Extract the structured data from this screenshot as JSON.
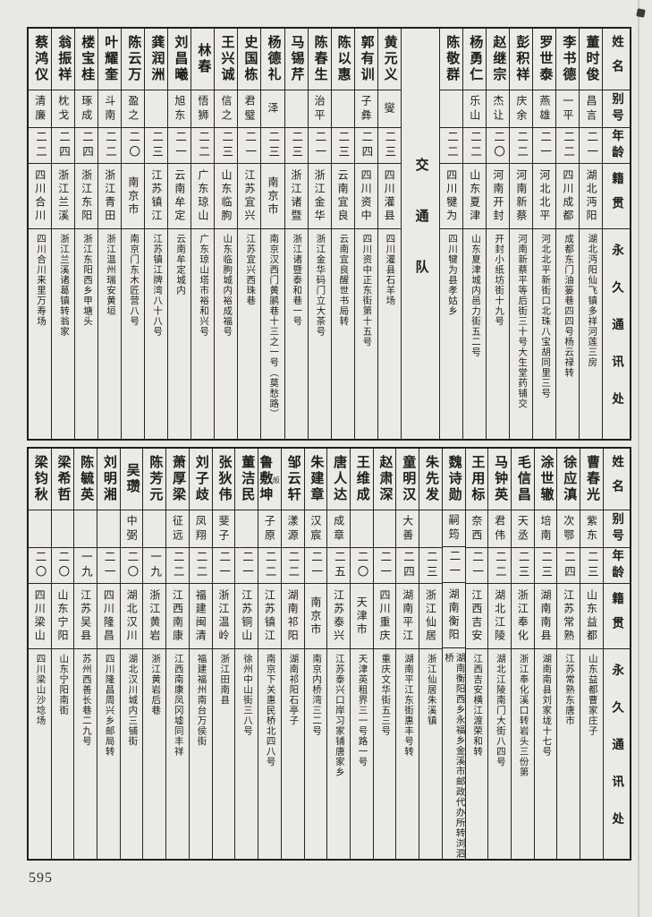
{
  "page": {
    "number": "595"
  },
  "headers": {
    "name": "姓名",
    "alias": "别号",
    "age": "年龄",
    "origin": "籍贯",
    "address": "永久通讯处"
  },
  "tables": [
    {
      "id": "top",
      "divider": {
        "label": "交通队",
        "before_index": 7
      },
      "entries": [
        {
          "name": "董时俊",
          "alias": "昌言",
          "age": "二一",
          "origin": "湖北沔阳",
          "address": "湖北沔阳仙飞镇多祥河莲三房"
        },
        {
          "name": "李书德",
          "alias": "一平",
          "age": "二二",
          "origin": "四川成都",
          "address": "成都东门油篓巷四四号杨云禄转"
        },
        {
          "name": "罗世泰",
          "alias": "燕雄",
          "age": "二一",
          "origin": "河北北平",
          "address": "河北北平新街口北珠八宝胡同里三号"
        },
        {
          "name": "彭积祥",
          "alias": "庆余",
          "age": "二二",
          "origin": "河南新蔡",
          "address": "河南新蔡平等后街三十号大生堂药铺交"
        },
        {
          "name": "赵继宗",
          "alias": "杰让",
          "age": "二〇",
          "origin": "河南开封",
          "address": "开封小纸坊街十九号"
        },
        {
          "name": "杨勇仁",
          "alias": "乐山",
          "age": "二二",
          "origin": "山东夏津",
          "address": "山东夏津城内邑力街五二号"
        },
        {
          "name": "陈敬群",
          "alias": "",
          "age": "二二",
          "origin": "四川犍为",
          "address": "四川犍为县孝姑乡"
        },
        {
          "name": "黄元义",
          "alias": "燮",
          "age": "二三",
          "origin": "四川灌县",
          "address": "四川灌县石羊场"
        },
        {
          "name": "郭有训",
          "alias": "子彝",
          "age": "二四",
          "origin": "四川资中",
          "address": "四川资中正东街第十五号"
        },
        {
          "name": "陈以惠",
          "alias": "",
          "age": "二三",
          "origin": "云南宜良",
          "address": "云南宜良醒世书局转"
        },
        {
          "name": "陈春生",
          "alias": "治平",
          "age": "二一",
          "origin": "浙江金华",
          "address": "浙江金华码门立大茶号"
        },
        {
          "name": "马锡芹",
          "alias": "",
          "age": "二三",
          "origin": "浙江诸暨",
          "address": "浙江诸暨泰和巷一号"
        },
        {
          "name": "杨德礼",
          "alias": "泽",
          "age": "二三",
          "origin": "南京市",
          "address": "南京汉西门黄鹂巷十三之一号（莫愁路）"
        },
        {
          "name": "史国栋",
          "alias": "君璧",
          "age": "二一",
          "origin": "江苏宜兴",
          "address": "江苏宜兴西珠巷"
        },
        {
          "name": "王兴诚",
          "alias": "信之",
          "age": "二三",
          "origin": "山东临朐",
          "address": "山东临朐城内裕成福号"
        },
        {
          "name": "林春",
          "alias": "悟狮",
          "age": "二二",
          "origin": "广东琼山",
          "address": "广东琼山塔市裕和兴号"
        },
        {
          "name": "刘昌曦",
          "alias": "旭东",
          "age": "二一",
          "origin": "云南牟定",
          "address": "云南牟定城内"
        },
        {
          "name": "龚润洲",
          "alias": "",
          "age": "二三",
          "origin": "江苏镇江",
          "address": "江苏镇江牌湾八十八号"
        },
        {
          "name": "陈云万",
          "alias": "盈之",
          "age": "二〇",
          "origin": "南京市",
          "address": "南京门东木匠营八号"
        },
        {
          "name": "叶耀奎",
          "alias": "斗南",
          "age": "二二",
          "origin": "浙江青田",
          "address": "浙江温州瑞安黄垣"
        },
        {
          "name": "楼宝桂",
          "alias": "琢成",
          "age": "二四",
          "origin": "浙江东阳",
          "address": "浙江东阳西乡甲塘头"
        },
        {
          "name": "翁振祥",
          "alias": "枕戈",
          "age": "二四",
          "origin": "浙江兰溪",
          "address": "浙江兰溪诸葛镇转翁家"
        },
        {
          "name": "蔡鸿仪",
          "alias": "清廉",
          "age": "二二",
          "origin": "四川合川",
          "address": "四川合川来里万寿场"
        }
      ]
    },
    {
      "id": "bottom",
      "entries": [
        {
          "name": "曹春光",
          "alias": "紫东",
          "age": "二三",
          "origin": "山东益都",
          "address": "山东益都曹家庄子"
        },
        {
          "name": "徐应滇",
          "alias": "次鄂",
          "age": "二四",
          "origin": "江苏常熟",
          "address": "江苏常熟东唐市"
        },
        {
          "name": "涂世辙",
          "alias": "培南",
          "age": "二三",
          "origin": "湖南南县",
          "address": "湖南南县刘家垅十七号"
        },
        {
          "name": "毛信昌",
          "alias": "天丞",
          "age": "二三",
          "origin": "浙江奉化",
          "address": "浙江奉化溪口转岩头三份第"
        },
        {
          "name": "马钟英",
          "alias": "君伟",
          "age": "二二",
          "origin": "湖北江陵",
          "address": "湖北江陵南门大街八四号"
        },
        {
          "name": "王用标",
          "alias": "奈西",
          "age": "二一",
          "origin": "江西吉安",
          "address": "江西吉安横江渡荣和转"
        },
        {
          "name": "魏诗勋",
          "alias": "嗣筠",
          "age": "二一",
          "origin": "湖南衡阳",
          "address": "湖南衡阳西乡永福乡金溪市邮政代办所转浏泗桥"
        },
        {
          "name": "朱先发",
          "alias": "",
          "age": "二三",
          "origin": "浙江仙居",
          "address": "浙江仙居朱溪镇"
        },
        {
          "name": "童明汉",
          "alias": "大善",
          "age": "二四",
          "origin": "湖南平江",
          "address": "湖南平江东街惠丰号转"
        },
        {
          "name": "赵肃深",
          "alias": "",
          "age": "二一",
          "origin": "四川重庆",
          "address": "重庆文华街五三号"
        },
        {
          "name": "王维成",
          "alias": "",
          "age": "二〇",
          "origin": "天津市",
          "address": "天津英租界三一号路一号"
        },
        {
          "name": "唐人达",
          "alias": "成章",
          "age": "二五",
          "origin": "江苏泰兴",
          "address": "江苏泰兴口岸习家铺唐家乡"
        },
        {
          "name": "朱建章",
          "alias": "汉宸",
          "age": "二一",
          "origin": "南京市",
          "address": "南京内桥湾三二号"
        },
        {
          "name": "邹云轩",
          "alias": "漾源",
          "age": "二二",
          "origin": "湖南祁阳",
          "address": "湖南祁阳石亭子"
        },
        {
          "name": "鲁敷坤",
          "name_note": "皈",
          "alias": "子原",
          "age": "二二",
          "origin": "江苏镇江",
          "address": "南京下关惠民桥北四八号"
        },
        {
          "name": "董洁民",
          "alias": "",
          "age": "二一",
          "origin": "江苏铜山",
          "address": "徐州中山街三八号"
        },
        {
          "name": "张狄伟",
          "alias": "斐子",
          "age": "二一",
          "origin": "浙江温岭",
          "address": "浙江田南县"
        },
        {
          "name": "刘子歧",
          "alias": "凤翔",
          "age": "二二",
          "origin": "福建闽清",
          "address": "福建福州南台万侯街"
        },
        {
          "name": "萧厚梁",
          "alias": "征远",
          "age": "二二",
          "origin": "江西南康",
          "address": "江西南康凤冈墟同丰祥"
        },
        {
          "name": "陈芳元",
          "alias": "",
          "age": "一九",
          "origin": "浙江黄岩",
          "address": "浙江黄岩后巷"
        },
        {
          "name": "吴瓒",
          "alias": "中弼",
          "age": "二〇",
          "origin": "湖北汉川",
          "address": "湖北汉川城内三铺街"
        },
        {
          "name": "刘明湘",
          "alias": "",
          "age": "二一",
          "origin": "四川隆昌",
          "address": "四川隆昌周兴乡邮局转"
        },
        {
          "name": "陈毓英",
          "alias": "",
          "age": "一九",
          "origin": "江苏吴县",
          "address": "苏州西善长巷二九号"
        },
        {
          "name": "梁希哲",
          "alias": "",
          "age": "二〇",
          "origin": "山东宁阳",
          "address": "山东宁阳南街"
        },
        {
          "name": "梁钧秋",
          "alias": "",
          "age": "二〇",
          "origin": "四川梁山",
          "address": "四川梁山沙埝场"
        }
      ]
    }
  ]
}
